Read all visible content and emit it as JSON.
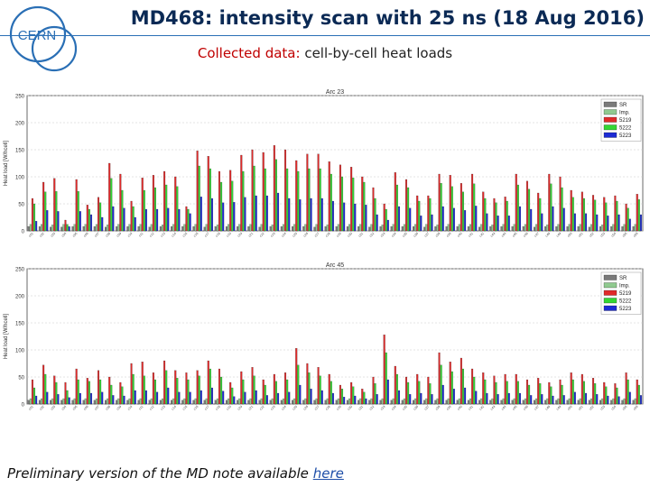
{
  "slide": {
    "title": "MD468: intensity scan with 25 ns (18 Aug 2016)",
    "subtitle_lead": "Collected data:",
    "subtitle_rest": "cell-by-cell heat loads",
    "footer_text": "Preliminary version of the MD note available",
    "footer_link": "here",
    "logo_text": "CERN"
  },
  "colors": {
    "SR": "#7a7a7a",
    "Imp.": "#8fc98f",
    "5219": "#e02a2a",
    "5222": "#33d633",
    "5223": "#1c2ad4",
    "brand": "#2a6fb5"
  },
  "chart_data": [
    {
      "type": "bar",
      "title": "Arc 23",
      "ylabel": "Heat load [W/hcell]",
      "xlabel": "",
      "ylim": [
        0,
        250
      ],
      "yticks": [
        0,
        50,
        100,
        150,
        200,
        250
      ],
      "grid": true,
      "legend": "top-right",
      "categories": [
        "c01",
        "c02",
        "c03",
        "c04",
        "c05",
        "c06",
        "c07",
        "c08",
        "c09",
        "c10",
        "c11",
        "c12",
        "c13",
        "c14",
        "c15",
        "c16",
        "c17",
        "c18",
        "c19",
        "c20",
        "c21",
        "c22",
        "c23",
        "c24",
        "c25",
        "c26",
        "c27",
        "c28",
        "c29",
        "c30",
        "c31",
        "c32",
        "c33",
        "c34",
        "c35",
        "c36",
        "c37",
        "c38",
        "c39",
        "c40",
        "c41",
        "c42",
        "c43",
        "c44",
        "c45",
        "c46",
        "c47",
        "c48",
        "c49",
        "c50",
        "c51",
        "c52",
        "c53",
        "c54",
        "c55",
        "c56"
      ],
      "series": [
        {
          "name": "SR",
          "values": [
            8,
            8,
            7,
            7,
            8,
            8,
            8,
            7,
            8,
            8,
            8,
            7,
            8,
            8,
            8,
            8,
            7,
            8,
            8,
            8,
            8,
            7,
            8,
            8,
            8,
            8,
            7,
            8,
            8,
            8,
            8,
            7,
            8,
            8,
            8,
            8,
            7,
            8,
            8,
            8,
            8,
            7,
            8,
            8,
            8,
            8,
            7,
            8,
            8,
            8,
            8,
            7,
            8,
            8,
            8,
            8
          ]
        },
        {
          "name": "Imp.",
          "values": [
            12,
            12,
            11,
            12,
            12,
            12,
            12,
            11,
            12,
            12,
            12,
            12,
            11,
            12,
            12,
            12,
            12,
            11,
            12,
            12,
            12,
            12,
            11,
            12,
            12,
            12,
            12,
            11,
            12,
            12,
            12,
            12,
            11,
            12,
            12,
            12,
            12,
            11,
            12,
            12,
            12,
            12,
            11,
            12,
            12,
            12,
            12,
            11,
            12,
            12,
            12,
            12,
            11,
            12,
            12,
            12
          ]
        },
        {
          "name": "5219",
          "values": [
            60,
            90,
            97,
            20,
            95,
            48,
            62,
            125,
            105,
            55,
            98,
            103,
            110,
            100,
            45,
            148,
            138,
            110,
            112,
            140,
            150,
            145,
            158,
            150,
            130,
            142,
            142,
            128,
            122,
            118,
            100,
            80,
            50,
            108,
            95,
            65,
            65,
            105,
            103,
            88,
            105,
            72,
            60,
            63,
            105,
            92,
            70,
            105,
            100,
            75,
            72,
            66,
            62,
            65,
            50,
            68
          ]
        },
        {
          "name": "5222",
          "values": [
            50,
            72,
            73,
            12,
            73,
            40,
            52,
            97,
            75,
            45,
            75,
            80,
            85,
            82,
            40,
            120,
            115,
            90,
            92,
            110,
            120,
            115,
            132,
            115,
            110,
            115,
            115,
            105,
            100,
            98,
            90,
            60,
            40,
            85,
            80,
            55,
            60,
            88,
            82,
            72,
            87,
            60,
            52,
            55,
            85,
            77,
            60,
            87,
            80,
            62,
            60,
            57,
            52,
            55,
            42,
            58
          ]
        },
        {
          "name": "5223",
          "values": [
            18,
            38,
            36,
            8,
            36,
            30,
            25,
            45,
            42,
            25,
            40,
            40,
            42,
            40,
            32,
            63,
            60,
            52,
            53,
            62,
            65,
            65,
            70,
            60,
            58,
            60,
            60,
            55,
            52,
            50,
            48,
            30,
            20,
            45,
            42,
            28,
            30,
            45,
            42,
            38,
            46,
            32,
            28,
            28,
            45,
            40,
            32,
            45,
            42,
            32,
            32,
            30,
            28,
            30,
            22,
            30
          ]
        }
      ]
    },
    {
      "type": "bar",
      "title": "Arc 45",
      "ylabel": "Heat load [W/hcell]",
      "xlabel": "",
      "ylim": [
        0,
        250
      ],
      "yticks": [
        0,
        50,
        100,
        150,
        200,
        250
      ],
      "grid": true,
      "legend": "top-right",
      "categories": [
        "c01",
        "c02",
        "c03",
        "c04",
        "c05",
        "c06",
        "c07",
        "c08",
        "c09",
        "c10",
        "c11",
        "c12",
        "c13",
        "c14",
        "c15",
        "c16",
        "c17",
        "c18",
        "c19",
        "c20",
        "c21",
        "c22",
        "c23",
        "c24",
        "c25",
        "c26",
        "c27",
        "c28",
        "c29",
        "c30",
        "c31",
        "c32",
        "c33",
        "c34",
        "c35",
        "c36",
        "c37",
        "c38",
        "c39",
        "c40",
        "c41",
        "c42",
        "c43",
        "c44",
        "c45",
        "c46",
        "c47",
        "c48",
        "c49",
        "c50",
        "c51",
        "c52",
        "c53",
        "c54",
        "c55",
        "c56"
      ],
      "series": [
        {
          "name": "SR",
          "values": [
            7,
            7,
            7,
            7,
            7,
            7,
            7,
            7,
            7,
            7,
            7,
            7,
            7,
            7,
            7,
            7,
            7,
            7,
            7,
            7,
            7,
            7,
            7,
            7,
            7,
            7,
            7,
            7,
            7,
            7,
            7,
            7,
            7,
            7,
            7,
            7,
            7,
            7,
            7,
            7,
            7,
            7,
            7,
            7,
            7,
            7,
            7,
            7,
            7,
            7,
            7,
            7,
            7,
            7,
            7,
            7
          ]
        },
        {
          "name": "Imp.",
          "values": [
            10,
            10,
            10,
            10,
            10,
            10,
            10,
            10,
            10,
            10,
            10,
            10,
            10,
            10,
            10,
            10,
            10,
            10,
            10,
            10,
            10,
            10,
            10,
            10,
            10,
            10,
            10,
            10,
            10,
            10,
            10,
            10,
            10,
            10,
            10,
            10,
            10,
            10,
            10,
            10,
            10,
            10,
            10,
            10,
            10,
            10,
            10,
            10,
            10,
            10,
            10,
            10,
            10,
            10,
            10,
            10
          ]
        },
        {
          "name": "5219",
          "values": [
            45,
            72,
            52,
            40,
            65,
            48,
            62,
            50,
            40,
            75,
            78,
            58,
            80,
            62,
            58,
            62,
            80,
            65,
            40,
            60,
            68,
            45,
            55,
            58,
            103,
            75,
            68,
            55,
            35,
            40,
            28,
            50,
            128,
            70,
            50,
            55,
            50,
            95,
            78,
            85,
            65,
            58,
            52,
            55,
            55,
            45,
            48,
            40,
            45,
            58,
            55,
            48,
            40,
            38,
            58,
            45
          ]
        },
        {
          "name": "5222",
          "values": [
            30,
            55,
            40,
            25,
            45,
            42,
            45,
            35,
            32,
            55,
            52,
            45,
            62,
            48,
            45,
            52,
            65,
            50,
            30,
            45,
            52,
            35,
            42,
            45,
            72,
            58,
            52,
            42,
            28,
            32,
            22,
            38,
            95,
            55,
            40,
            42,
            38,
            72,
            60,
            65,
            50,
            45,
            40,
            42,
            42,
            35,
            38,
            32,
            35,
            45,
            42,
            38,
            32,
            30,
            45,
            35
          ]
        },
        {
          "name": "5223",
          "values": [
            15,
            22,
            18,
            12,
            20,
            20,
            22,
            16,
            15,
            25,
            25,
            22,
            30,
            22,
            22,
            25,
            30,
            24,
            14,
            22,
            25,
            16,
            20,
            22,
            35,
            28,
            25,
            20,
            13,
            15,
            10,
            18,
            45,
            25,
            18,
            20,
            18,
            35,
            28,
            30,
            24,
            20,
            18,
            20,
            20,
            16,
            18,
            15,
            16,
            22,
            20,
            18,
            15,
            14,
            22,
            16
          ]
        }
      ]
    }
  ]
}
